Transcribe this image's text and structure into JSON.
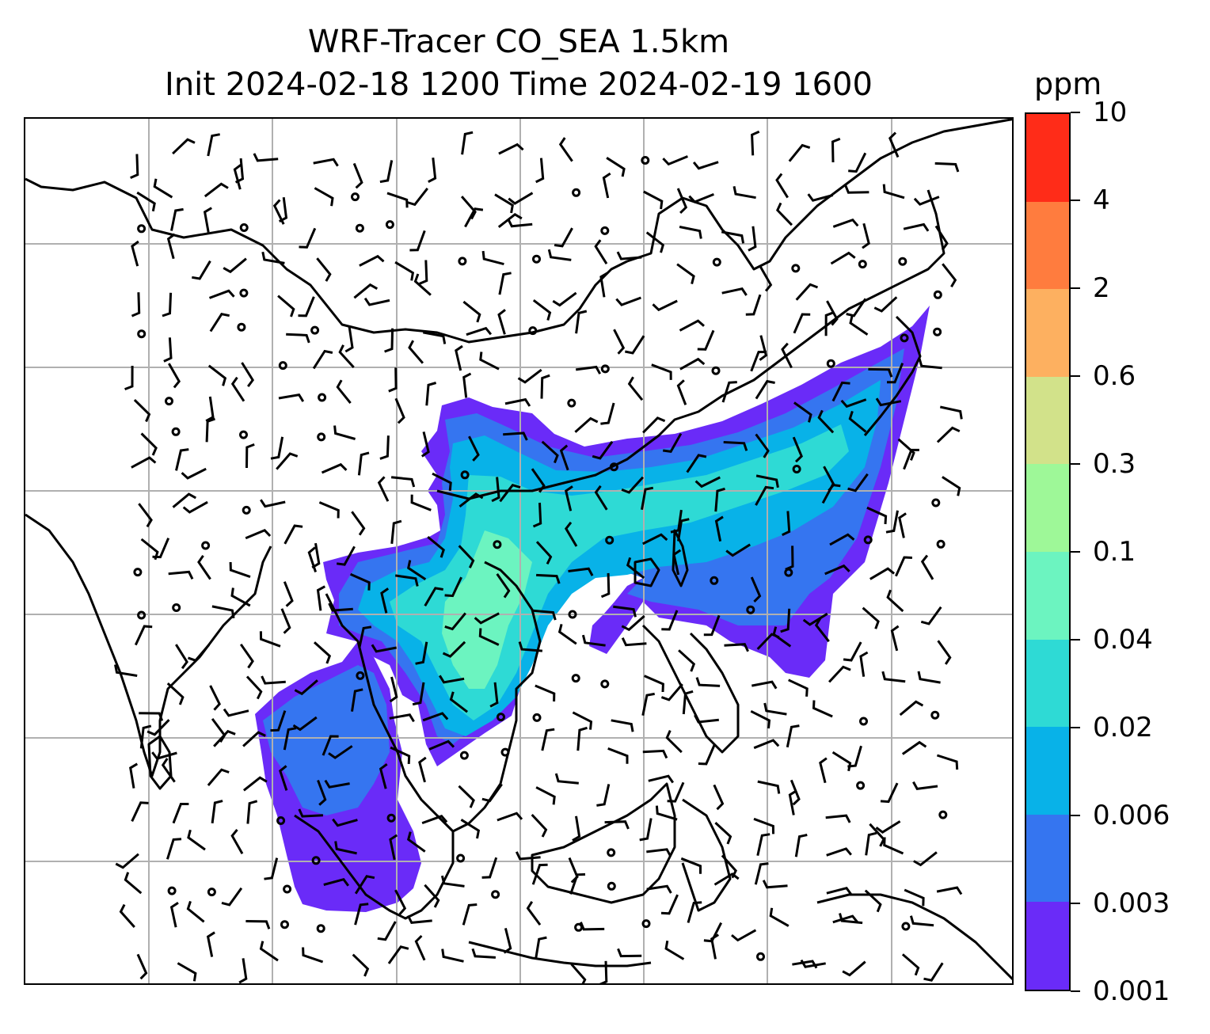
{
  "title": {
    "line1": "WRF-Tracer CO_SEA 1.5km",
    "line2": "Init 2024-02-18 1200 Time 2024-02-19 1600"
  },
  "colorbar": {
    "units": "ppm",
    "levels": [
      "0.001",
      "0.003",
      "0.006",
      "0.02",
      "0.04",
      "0.1",
      "0.3",
      "0.6",
      "2",
      "4",
      "10"
    ],
    "colors": [
      "#6a2bf8",
      "#3575f0",
      "#08b2e8",
      "#2edad5",
      "#6cf4c0",
      "#9ef898",
      "#d2e28a",
      "#fdb060",
      "#ff7c3e",
      "#ff2c18"
    ]
  },
  "map": {
    "layers": [
      "co-tracer-concentration",
      "wind-barbs",
      "coastlines",
      "gridlines"
    ],
    "gridline_color": "#b0b0b0",
    "coastline_color": "#000000"
  }
}
